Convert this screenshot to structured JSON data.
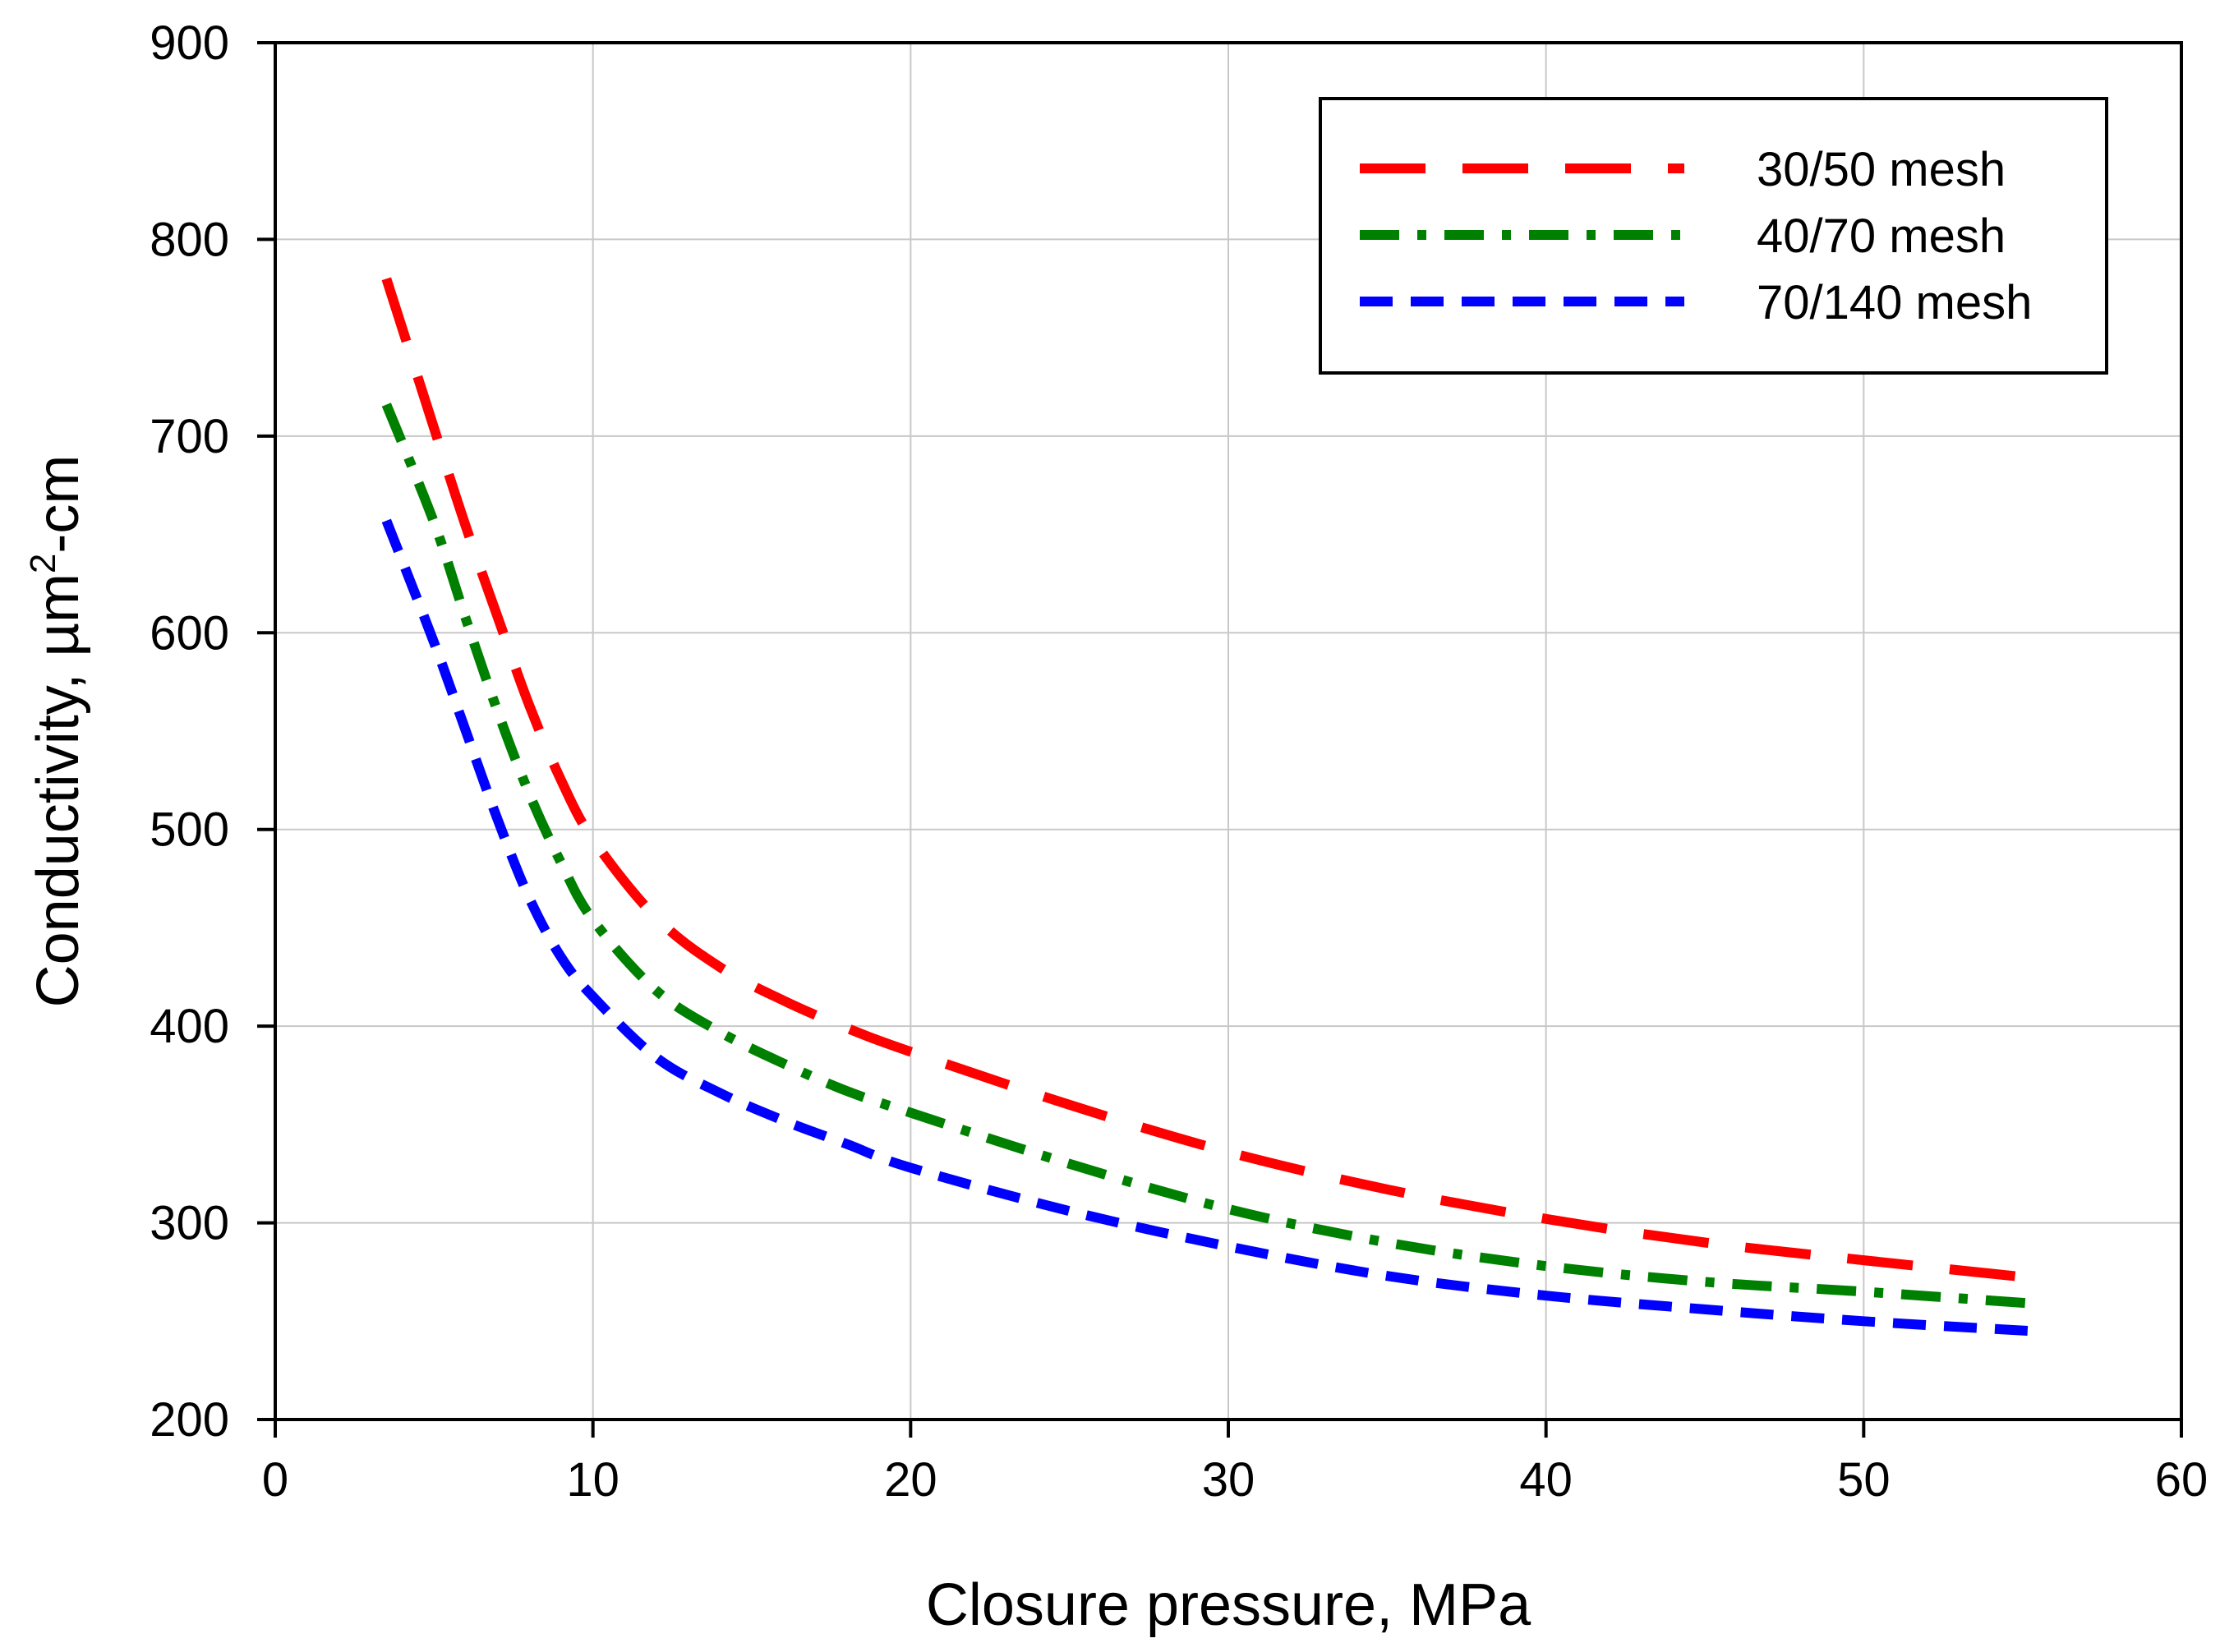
{
  "chart_data": {
    "type": "line",
    "title": "",
    "xlabel": "Closure pressure, MPa",
    "ylabel": {
      "base": "Conductivity, µm",
      "superscript": "2",
      "suffix": "-cm"
    },
    "xlim": [
      0,
      60
    ],
    "ylim": [
      200,
      900
    ],
    "xticks": [
      0,
      10,
      20,
      30,
      40,
      50,
      60
    ],
    "yticks": [
      200,
      300,
      400,
      500,
      600,
      700,
      800,
      900
    ],
    "grid": true,
    "legend_position": "top-right",
    "series": [
      {
        "name": "30/50 mesh",
        "color": "#ff0000",
        "dash": "long-dash",
        "x": [
          3.5,
          5,
          6,
          7,
          8,
          9,
          10,
          12,
          14,
          16,
          18,
          20,
          25,
          30,
          35,
          40,
          45,
          50,
          55.3
        ],
        "y": [
          780,
          704,
          654,
          608,
          563,
          525,
          495,
          455,
          430,
          413,
          399,
          387,
          360,
          336,
          317,
          302,
          290,
          281,
          272
        ]
      },
      {
        "name": "40/70 mesh",
        "color": "#008000",
        "dash": "dash-dot",
        "x": [
          3.5,
          5,
          6,
          7,
          8,
          9,
          10,
          12,
          14,
          16,
          18,
          20,
          25,
          30,
          35,
          40,
          45,
          50,
          55.3
        ],
        "y": [
          716,
          656,
          607,
          560,
          518,
          483,
          454,
          418,
          397,
          381,
          367,
          356,
          330,
          307,
          290,
          278,
          270,
          265,
          259
        ]
      },
      {
        "name": "70/140 mesh",
        "color": "#0000ff",
        "dash": "short-dash",
        "x": [
          3.5,
          5,
          6,
          7,
          8,
          9,
          10,
          12,
          14,
          16,
          18,
          20,
          25,
          30,
          35,
          40,
          45,
          50,
          55.3
        ],
        "y": [
          657,
          595,
          550,
          505,
          465,
          435,
          415,
          384,
          366,
          352,
          340,
          328,
          306,
          288,
          273,
          263,
          256,
          250,
          245
        ]
      }
    ]
  }
}
